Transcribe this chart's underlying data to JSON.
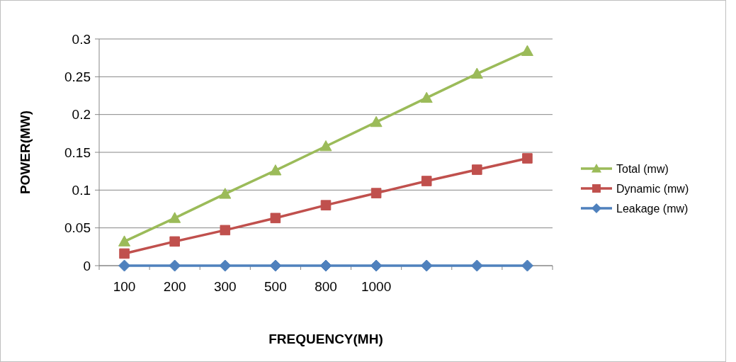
{
  "chart_data": {
    "type": "line",
    "xlabel": "FREQUENCY(MH)",
    "ylabel": "POWER(MW)",
    "categories": [
      "100",
      "200",
      "300",
      "500",
      "800",
      "1000",
      null,
      null,
      null
    ],
    "series": [
      {
        "name": "Total (mw)",
        "color": "#9bbb59",
        "marker": "triangle",
        "values": [
          0.032,
          0.063,
          0.095,
          0.126,
          0.158,
          0.19,
          0.222,
          0.254,
          0.284
        ]
      },
      {
        "name": "Dynamic (mw)",
        "color": "#c0504d",
        "marker": "square",
        "values": [
          0.016,
          0.032,
          0.047,
          0.063,
          0.08,
          0.096,
          0.112,
          0.127,
          0.142
        ]
      },
      {
        "name": "Leakage (mw)",
        "color": "#4f81bd",
        "marker": "diamond",
        "values": [
          0,
          0,
          0,
          0,
          0,
          0,
          0,
          0,
          0
        ]
      }
    ],
    "ylim": [
      0,
      0.3
    ],
    "yticks": [
      0,
      0.05,
      0.1,
      0.15,
      0.2,
      0.25,
      0.3
    ],
    "grid": "y",
    "legend": "right",
    "line_style": "solid"
  }
}
